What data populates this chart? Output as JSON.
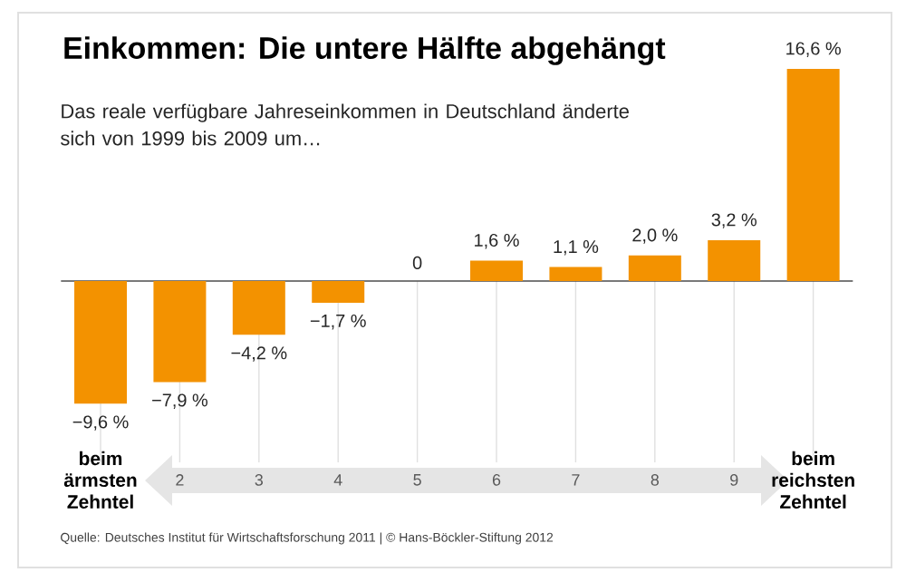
{
  "chart_data": {
    "type": "bar",
    "title": "Einkommen: Die untere Hälfte abgehängt",
    "subtitle": "Das reale verfügbare Jahreseinkommen in Deutschland änderte sich von 1999 bis 2009 um…",
    "categories": [
      "beim ärmsten Zehntel",
      "2",
      "3",
      "4",
      "5",
      "6",
      "7",
      "8",
      "9",
      "beim reichsten Zehntel"
    ],
    "values": [
      -9.6,
      -7.9,
      -4.2,
      -1.7,
      0,
      1.6,
      1.1,
      2.0,
      3.2,
      16.6
    ],
    "value_labels": [
      "−9,6 %",
      "−7,9 %",
      "−4,2 %",
      "−1,7 %",
      "0",
      "1,6 %",
      "1,1 %",
      "2,0 %",
      "3,2 %",
      "16,6 %"
    ],
    "color": "#f39200",
    "annotations": [
      "Quelle: Deutsches Institut für Wirtschaftsforschung 2011 | © Hans-Böckler-Stiftung 2012"
    ]
  }
}
